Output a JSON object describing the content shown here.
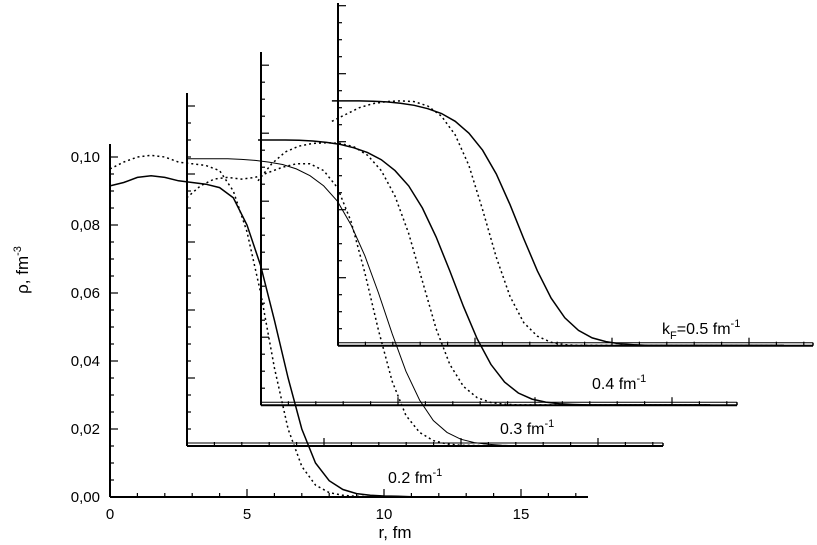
{
  "chart_data": {
    "type": "line",
    "xlabel": "r, fm",
    "ylabel_main": "ρ, fm",
    "ylabel_exp": "-3",
    "xlim": [
      0,
      17
    ],
    "ylim": [
      0,
      0.105
    ],
    "x_ticks": [
      {
        "value": 0,
        "label": "0"
      },
      {
        "value": 5,
        "label": "5"
      },
      {
        "value": 10,
        "label": "10"
      },
      {
        "value": 15,
        "label": "15"
      }
    ],
    "y_ticks": [
      {
        "value": 0.0,
        "label": "0,00"
      },
      {
        "value": 0.02,
        "label": "0,02"
      },
      {
        "value": 0.04,
        "label": "0,04"
      },
      {
        "value": 0.06,
        "label": "0,06"
      },
      {
        "value": 0.08,
        "label": "0,08"
      },
      {
        "value": 0.1,
        "label": "0,10"
      }
    ],
    "panels": [
      {
        "label_main": "0.2 fm",
        "label_exp": "-1",
        "label_prefix": "",
        "label_sub": "",
        "label_suffix": "",
        "offset": [
          0,
          0
        ],
        "series": [
          {
            "style": "solid",
            "x": [
              0,
              0.5,
              1,
              1.5,
              2,
              2.5,
              3,
              3.5,
              4,
              4.5,
              5,
              5.5,
              6,
              6.5,
              7,
              7.5,
              8,
              8.5,
              9,
              9.5,
              10,
              10.5,
              11,
              11.5,
              12
            ],
            "y": [
              0.0915,
              0.0925,
              0.094,
              0.0945,
              0.094,
              0.093,
              0.0925,
              0.092,
              0.091,
              0.088,
              0.08,
              0.068,
              0.052,
              0.035,
              0.02,
              0.01,
              0.0048,
              0.0022,
              0.001,
              0.0005,
              0.0003,
              0.0002,
              0.0001,
              0.0001,
              0.0001
            ]
          },
          {
            "style": "dotted",
            "x": [
              0,
              0.5,
              1,
              1.5,
              2,
              2.5,
              3,
              3.5,
              4,
              4.5,
              5,
              5.5,
              6,
              6.5,
              7,
              7.5,
              8,
              8.5,
              9,
              9.5,
              10,
              10.5,
              11,
              11.5,
              12
            ],
            "y": [
              0.0965,
              0.0985,
              0.1,
              0.1005,
              0.1,
              0.0985,
              0.098,
              0.0975,
              0.096,
              0.09,
              0.078,
              0.06,
              0.038,
              0.02,
              0.009,
              0.0035,
              0.0013,
              0.0005,
              0.0002,
              0.0001,
              0.0001,
              0.0001,
              0.0001,
              0.0001,
              0.0001
            ]
          }
        ]
      },
      {
        "label_main": "0.3 fm",
        "label_exp": "-1",
        "label_prefix": "",
        "label_sub": "",
        "label_suffix": "",
        "offset": [
          2.8,
          0.015
        ],
        "series": [
          {
            "style": "solid",
            "x": [
              0,
              0.5,
              1,
              1.5,
              2,
              2.5,
              3,
              3.5,
              4,
              4.5,
              5,
              5.5,
              6,
              6.5,
              7,
              7.5,
              8,
              8.5,
              9,
              9.5,
              10,
              10.5,
              11,
              11.5,
              12,
              13,
              14
            ],
            "y": [
              0.0845,
              0.0845,
              0.0845,
              0.0845,
              0.0843,
              0.084,
              0.0835,
              0.0828,
              0.0815,
              0.0795,
              0.0765,
              0.072,
              0.065,
              0.056,
              0.045,
              0.033,
              0.022,
              0.0135,
              0.0075,
              0.004,
              0.002,
              0.001,
              0.0005,
              0.0002,
              0.0001,
              0.0001,
              0.0001
            ]
          },
          {
            "style": "dotted",
            "x": [
              0,
              0.5,
              1,
              1.5,
              2,
              2.5,
              3,
              3.5,
              4,
              4.5,
              5,
              5.5,
              6,
              6.5,
              7,
              7.5,
              8,
              8.5,
              9,
              9.5,
              10,
              11,
              12,
              13,
              14
            ],
            "y": [
              0.073,
              0.0765,
              0.0785,
              0.079,
              0.0785,
              0.079,
              0.0805,
              0.082,
              0.083,
              0.083,
              0.081,
              0.076,
              0.066,
              0.051,
              0.034,
              0.019,
              0.009,
              0.004,
              0.0016,
              0.0006,
              0.0002,
              0.0001,
              0.0001,
              0.0001,
              0.0001
            ]
          }
        ]
      },
      {
        "label_main": "0.4 fm",
        "label_exp": "-1",
        "label_prefix": "",
        "label_sub": "",
        "label_suffix": "",
        "offset": [
          5.4,
          0.027
        ],
        "series": [
          {
            "style": "solid",
            "x": [
              0,
              0.5,
              1,
              1.5,
              2,
              2.5,
              3,
              3.5,
              4,
              4.5,
              5,
              5.5,
              6,
              6.5,
              7,
              7.5,
              8,
              8.5,
              9,
              9.5,
              10,
              10.5,
              11,
              11.5,
              12,
              13,
              14,
              15,
              16.5
            ],
            "y": [
              0.078,
              0.078,
              0.078,
              0.0779,
              0.0777,
              0.0773,
              0.0767,
              0.0757,
              0.0743,
              0.0722,
              0.069,
              0.0645,
              0.058,
              0.0495,
              0.0395,
              0.029,
              0.0195,
              0.012,
              0.0068,
              0.0036,
              0.0018,
              0.0009,
              0.0004,
              0.0002,
              0.0001,
              0.0001,
              0.0001,
              0.0001,
              0.0001
            ]
          },
          {
            "style": "dotted",
            "x": [
              0,
              0.5,
              1,
              1.5,
              2,
              2.5,
              3,
              3.5,
              4,
              4.5,
              5,
              5.5,
              6,
              6.5,
              7,
              7.5,
              8,
              8.5,
              9,
              9.5,
              10,
              11,
              12,
              13,
              14,
              15,
              16.5
            ],
            "y": [
              0.066,
              0.071,
              0.0745,
              0.0762,
              0.077,
              0.0772,
              0.077,
              0.076,
              0.0735,
              0.069,
              0.0615,
              0.0505,
              0.0365,
              0.0225,
              0.012,
              0.0055,
              0.0022,
              0.0008,
              0.0003,
              0.0001,
              0.0001,
              0.0001,
              0.0001,
              0.0001,
              0.0001,
              0.0001,
              0.0001
            ]
          }
        ]
      },
      {
        "label_main": "=0.5 fm",
        "label_exp": "-1",
        "label_prefix": "k",
        "label_sub": "F",
        "label_suffix": "",
        "offset": [
          8.1,
          0.0445
        ],
        "series": [
          {
            "style": "solid",
            "x": [
              0,
              0.5,
              1,
              1.5,
              2,
              2.5,
              3,
              3.5,
              4,
              4.5,
              5,
              5.5,
              6,
              6.5,
              7,
              7.5,
              8,
              8.5,
              9,
              9.5,
              10,
              10.5,
              11,
              11.5,
              12,
              13,
              14,
              15,
              16.5
            ],
            "y": [
              0.072,
              0.072,
              0.072,
              0.0719,
              0.0717,
              0.0713,
              0.0707,
              0.0697,
              0.0683,
              0.066,
              0.0625,
              0.0575,
              0.0505,
              0.0415,
              0.0315,
              0.022,
              0.014,
              0.0082,
              0.0045,
              0.0023,
              0.0012,
              0.0006,
              0.0003,
              0.0001,
              0.0001,
              0.0001,
              0.0001,
              0.0001,
              0.0001
            ]
          },
          {
            "style": "dotted",
            "x": [
              0,
              0.5,
              1,
              1.5,
              2,
              2.5,
              3,
              3.5,
              4,
              4.5,
              5,
              5.5,
              6,
              6.5,
              7,
              7.5,
              8,
              8.5,
              9,
              9.5,
              10,
              11,
              12,
              13,
              14,
              15,
              16.5
            ],
            "y": [
              0.066,
              0.068,
              0.07,
              0.0712,
              0.0718,
              0.072,
              0.0718,
              0.0705,
              0.0675,
              0.062,
              0.053,
              0.04,
              0.026,
              0.0145,
              0.0068,
              0.0028,
              0.001,
              0.0003,
              0.0001,
              0.0001,
              0.0001,
              0.0001,
              0.0001,
              0.0001,
              0.0001,
              0.0001,
              0.0001
            ]
          }
        ]
      }
    ]
  }
}
